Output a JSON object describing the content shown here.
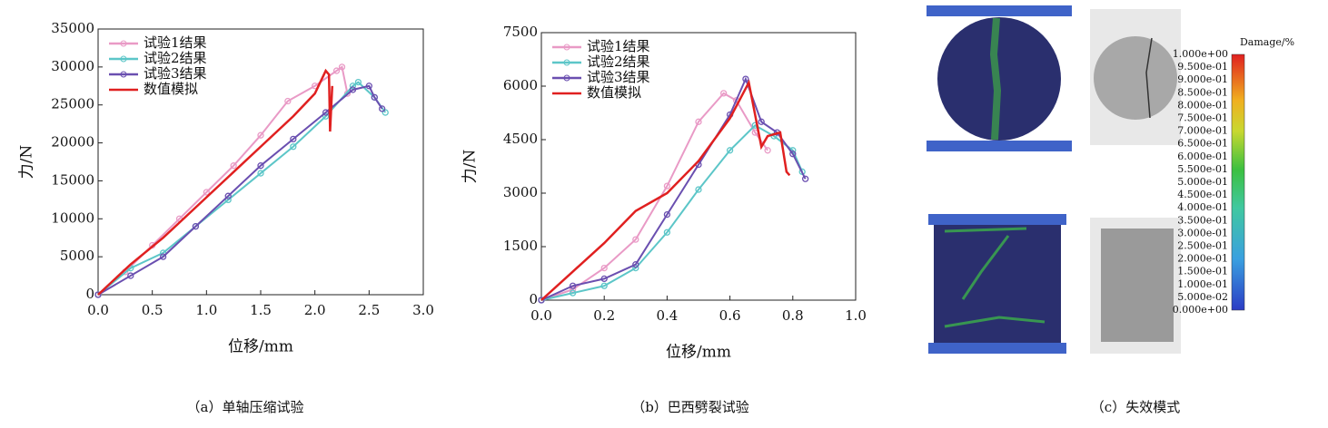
{
  "chart_data": [
    {
      "type": "line",
      "caption": "（a）单轴压缩试验",
      "x_label": "位移/mm",
      "y_label": "力/N",
      "xlim": [
        0,
        3
      ],
      "xticks": [
        {
          "value": 0,
          "label": "0.0"
        },
        {
          "value": 0.5,
          "label": "0.5"
        },
        {
          "value": 1,
          "label": "1.0"
        },
        {
          "value": 1.5,
          "label": "1.5"
        },
        {
          "value": 2,
          "label": "2.0"
        },
        {
          "value": 2.5,
          "label": "2.5"
        },
        {
          "value": 3,
          "label": "3.0"
        }
      ],
      "ylim": [
        0,
        35000
      ],
      "yticks": [
        0,
        5000,
        10000,
        15000,
        20000,
        25000,
        30000,
        35000
      ],
      "legend": "upper left",
      "series": [
        {
          "name": "试验1结果",
          "color": "#e99ac6",
          "marker": true,
          "x": [
            0,
            0.25,
            0.5,
            0.75,
            1.0,
            1.25,
            1.5,
            1.75,
            2.0,
            2.2,
            2.25,
            2.3
          ],
          "values": [
            0,
            3000,
            6500,
            10000,
            13500,
            17000,
            21000,
            25500,
            27500,
            29500,
            30000,
            26500
          ]
        },
        {
          "name": "试验2结果",
          "color": "#5cc6c8",
          "marker": true,
          "x": [
            0,
            0.3,
            0.6,
            0.9,
            1.2,
            1.5,
            1.8,
            2.1,
            2.35,
            2.4,
            2.55,
            2.65
          ],
          "values": [
            0,
            3500,
            5500,
            9000,
            12500,
            16000,
            19500,
            23500,
            27500,
            28000,
            26000,
            24000
          ]
        },
        {
          "name": "试验3结果",
          "color": "#6a4fb0",
          "marker": true,
          "x": [
            0,
            0.3,
            0.6,
            0.9,
            1.2,
            1.5,
            1.8,
            2.1,
            2.35,
            2.5,
            2.55,
            2.62
          ],
          "values": [
            0,
            2500,
            5000,
            9000,
            13000,
            17000,
            20500,
            24000,
            27000,
            27500,
            26000,
            24500
          ]
        },
        {
          "name": "数值模拟",
          "color": "#e02020",
          "marker": false,
          "x": [
            0,
            0.3,
            0.6,
            0.9,
            1.2,
            1.5,
            1.8,
            2.0,
            2.1,
            2.13,
            2.14,
            2.16
          ],
          "values": [
            0,
            4000,
            7500,
            11500,
            15500,
            19500,
            23500,
            26500,
            29500,
            29000,
            21500,
            27500
          ]
        }
      ]
    },
    {
      "type": "line",
      "caption": "（b）巴西劈裂试验",
      "x_label": "位移/mm",
      "y_label": "力/N",
      "xlim": [
        0,
        1
      ],
      "xticks": [
        {
          "value": 0,
          "label": "0.0"
        },
        {
          "value": 0.2,
          "label": "0.2"
        },
        {
          "value": 0.4,
          "label": "0.4"
        },
        {
          "value": 0.6,
          "label": "0.6"
        },
        {
          "value": 0.8,
          "label": "0.8"
        },
        {
          "value": 1,
          "label": "1.0"
        }
      ],
      "ylim": [
        0,
        7500
      ],
      "yticks": [
        0,
        1500,
        3000,
        4500,
        6000,
        7500
      ],
      "legend": "upper left",
      "series": [
        {
          "name": "试验1结果",
          "color": "#e99ac6",
          "marker": true,
          "x": [
            0,
            0.1,
            0.2,
            0.3,
            0.4,
            0.5,
            0.58,
            0.62,
            0.68,
            0.72
          ],
          "values": [
            0,
            300,
            900,
            1700,
            3200,
            5000,
            5800,
            5600,
            4700,
            4200
          ]
        },
        {
          "name": "试验2结果",
          "color": "#5cc6c8",
          "marker": true,
          "x": [
            0,
            0.1,
            0.2,
            0.3,
            0.4,
            0.5,
            0.6,
            0.68,
            0.74,
            0.8,
            0.83
          ],
          "values": [
            0,
            200,
            400,
            900,
            1900,
            3100,
            4200,
            4900,
            4600,
            4200,
            3600
          ]
        },
        {
          "name": "试验3结果",
          "color": "#6a4fb0",
          "marker": true,
          "x": [
            0,
            0.1,
            0.2,
            0.3,
            0.4,
            0.5,
            0.6,
            0.65,
            0.7,
            0.75,
            0.8,
            0.84
          ],
          "values": [
            0,
            400,
            600,
            1000,
            2400,
            3800,
            5200,
            6200,
            5000,
            4700,
            4100,
            3400
          ]
        },
        {
          "name": "数值模拟",
          "color": "#e02020",
          "marker": false,
          "x": [
            0,
            0.1,
            0.2,
            0.3,
            0.4,
            0.5,
            0.6,
            0.66,
            0.7,
            0.72,
            0.76,
            0.78,
            0.79
          ],
          "values": [
            0,
            800,
            1600,
            2500,
            3000,
            3900,
            5100,
            6100,
            4300,
            4600,
            4700,
            3600,
            3500
          ]
        }
      ]
    }
  ],
  "panel_c": {
    "caption": "（c）失效模式",
    "colorbar_title": "Damage/%",
    "colorbar_labels": [
      "1.000e+00",
      "9.500e-01",
      "9.000e-01",
      "8.500e-01",
      "8.000e-01",
      "7.500e-01",
      "7.000e-01",
      "6.500e-01",
      "6.000e-01",
      "5.500e-01",
      "5.000e-01",
      "4.500e-01",
      "4.000e-01",
      "3.500e-01",
      "3.000e-01",
      "2.500e-01",
      "2.000e-01",
      "1.500e-01",
      "1.000e-01",
      "5.000e-02",
      "0.000e+00"
    ]
  }
}
